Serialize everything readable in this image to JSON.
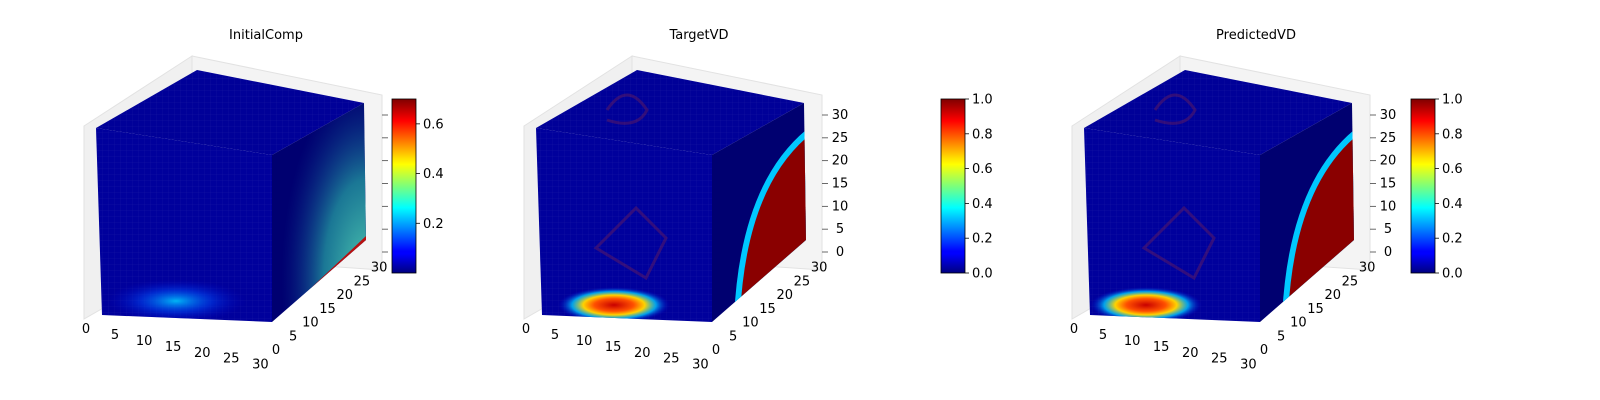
{
  "figure": {
    "panels": [
      {
        "title": "InitialComp"
      },
      {
        "title": "TargetVD"
      },
      {
        "title": "PredictedVD"
      }
    ]
  },
  "chart_data": [
    {
      "type": "heatmap",
      "subtype": "3d-voxel",
      "title": "InitialComp",
      "colormap": "jet",
      "x_ticks": [
        "0",
        "5",
        "10",
        "15",
        "20",
        "25",
        "30"
      ],
      "y_ticks": [
        "0",
        "5",
        "10",
        "15",
        "20",
        "25",
        "30"
      ],
      "z_ticks": [
        "",
        "",
        "",
        "",
        "",
        "",
        ""
      ],
      "xlim": [
        0,
        32
      ],
      "ylim": [
        0,
        32
      ],
      "zlim": [
        0,
        32
      ],
      "colorbar": {
        "min": 0.0,
        "max": 0.7,
        "ticks": [
          "0.2",
          "0.4",
          "0.6"
        ],
        "tick_values": [
          0.2,
          0.4,
          0.6
        ]
      },
      "grid": true
    },
    {
      "type": "heatmap",
      "subtype": "3d-voxel",
      "title": "TargetVD",
      "colormap": "jet",
      "x_ticks": [
        "0",
        "5",
        "10",
        "15",
        "20",
        "25",
        "30"
      ],
      "y_ticks": [
        "0",
        "5",
        "10",
        "15",
        "20",
        "25",
        "30"
      ],
      "z_ticks": [
        "0",
        "5",
        "10",
        "15",
        "20",
        "25",
        "30"
      ],
      "xlim": [
        0,
        32
      ],
      "ylim": [
        0,
        32
      ],
      "zlim": [
        0,
        32
      ],
      "colorbar": {
        "min": 0.0,
        "max": 1.0,
        "ticks": [
          "0.0",
          "0.2",
          "0.4",
          "0.6",
          "0.8",
          "1.0"
        ],
        "tick_values": [
          0.0,
          0.2,
          0.4,
          0.6,
          0.8,
          1.0
        ]
      },
      "grid": true
    },
    {
      "type": "heatmap",
      "subtype": "3d-voxel",
      "title": "PredictedVD",
      "colormap": "jet",
      "x_ticks": [
        "0",
        "5",
        "10",
        "15",
        "20",
        "25",
        "30"
      ],
      "y_ticks": [
        "0",
        "5",
        "10",
        "15",
        "20",
        "25",
        "30"
      ],
      "z_ticks": [
        "0",
        "5",
        "10",
        "15",
        "20",
        "25",
        "30"
      ],
      "xlim": [
        0,
        32
      ],
      "ylim": [
        0,
        32
      ],
      "zlim": [
        0,
        32
      ],
      "colorbar": {
        "min": 0.0,
        "max": 1.0,
        "ticks": [
          "0.0",
          "0.2",
          "0.4",
          "0.6",
          "0.8",
          "1.0"
        ],
        "tick_values": [
          0.0,
          0.2,
          0.4,
          0.6,
          0.8,
          1.0
        ]
      },
      "grid": true
    }
  ],
  "colors": {
    "cube_dark": "#00008c",
    "grid_pane": "#f0f0f0",
    "grid_line": "#d0d0d0"
  }
}
